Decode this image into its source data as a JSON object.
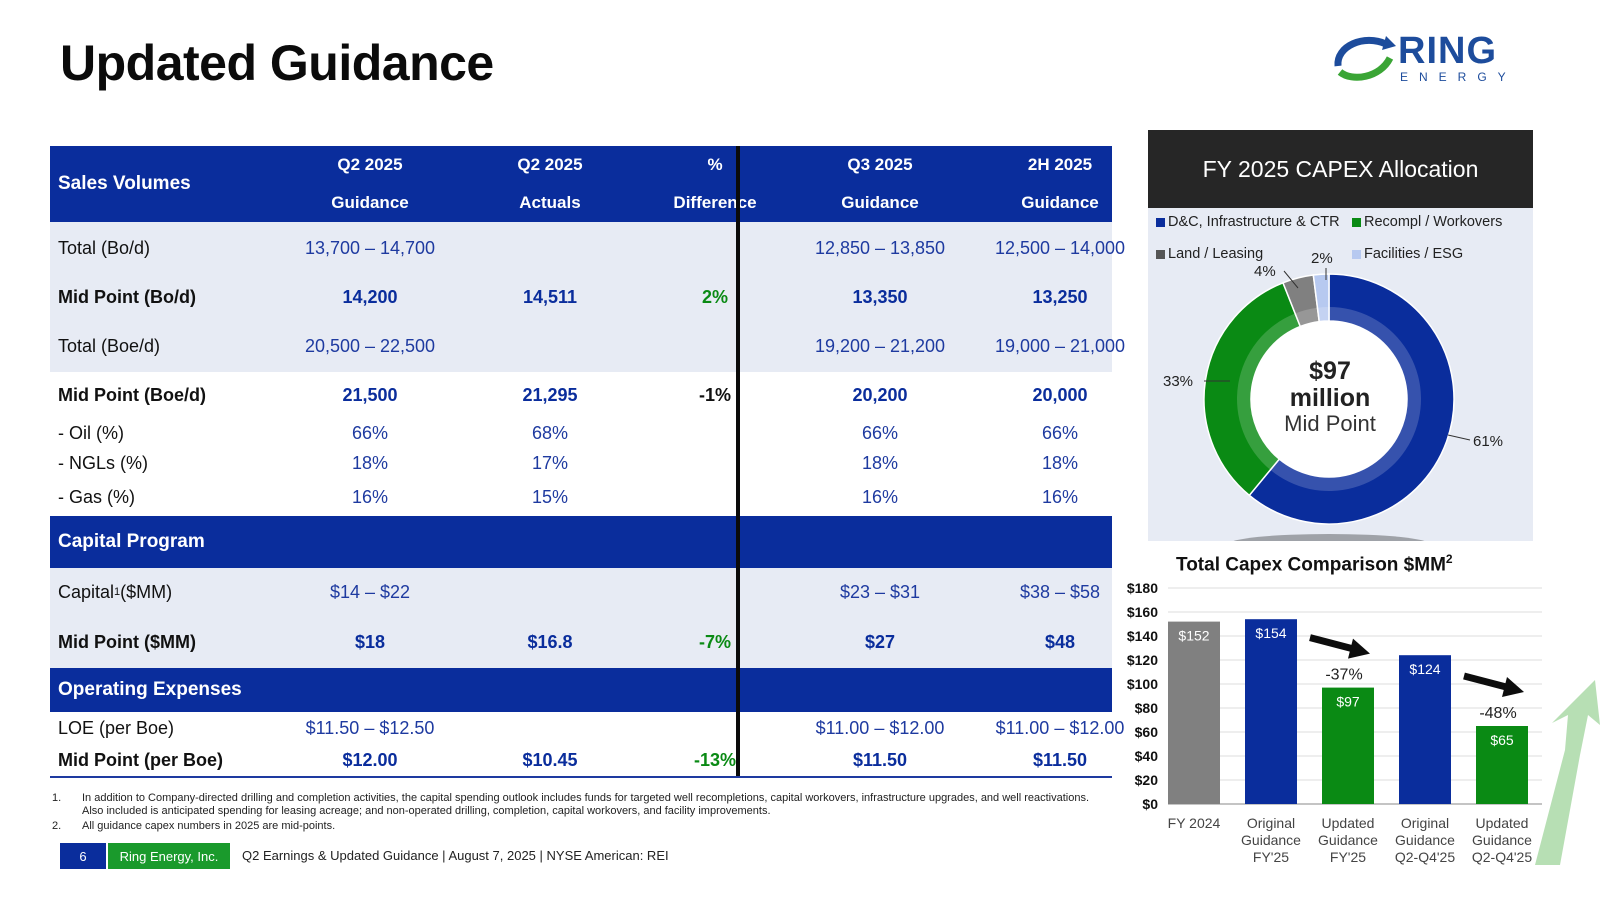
{
  "page": {
    "title": "Updated Guidance",
    "logo": {
      "word": "RING",
      "sub": "ENERGY"
    }
  },
  "table": {
    "header": {
      "label": "Sales Volumes",
      "cols": [
        {
          "l1": "Q2 2025",
          "l2": "Guidance"
        },
        {
          "l1": "Q2 2025",
          "l2": "Actuals"
        },
        {
          "l1": "%",
          "l2": "Difference"
        },
        {
          "l1": "Q3 2025",
          "l2": "Guidance"
        },
        {
          "l1": "2H 2025",
          "l2": "Guidance"
        }
      ]
    },
    "rows": [
      {
        "label": "Total (Bo/d)",
        "vals": [
          "13,700 – 14,700",
          "",
          "",
          "12,850 – 13,850",
          "12,500 – 14,000"
        ]
      },
      {
        "label": "Mid Point (Bo/d)",
        "vals": [
          "14,200",
          "14,511",
          "2%",
          "13,350",
          "13,250"
        ]
      },
      {
        "label": "Total (Boe/d)",
        "vals": [
          "20,500 – 22,500",
          "",
          "",
          "19,200 – 21,200",
          "19,000 – 21,000"
        ]
      },
      {
        "label": "Mid Point (Boe/d)",
        "vals": [
          "21,500",
          "21,295",
          "-1%",
          "20,200",
          "20,000"
        ]
      },
      {
        "label": " - Oil (%)",
        "vals": [
          "66%",
          "68%",
          "",
          "66%",
          "66%"
        ]
      },
      {
        "label": " - NGLs (%)",
        "vals": [
          "18%",
          "17%",
          "",
          "18%",
          "18%"
        ]
      },
      {
        "label": " - Gas (%)",
        "vals": [
          "16%",
          "15%",
          "",
          "16%",
          "16%"
        ]
      },
      {
        "label": "Capital Program",
        "vals": [
          "",
          "",
          "",
          "",
          ""
        ]
      },
      {
        "label": "Capital",
        "sup": "1",
        "label_tail": " ($MM)",
        "vals": [
          "$14 – $22",
          "",
          "",
          "$23 – $31",
          "$38 – $58"
        ]
      },
      {
        "label": "Mid Point ($MM)",
        "vals": [
          "$18",
          "$16.8",
          "-7%",
          "$27",
          "$48"
        ]
      },
      {
        "label": "Operating Expenses",
        "vals": [
          "",
          "",
          "",
          "",
          ""
        ]
      },
      {
        "label": "LOE (per Boe)",
        "vals": [
          "$11.50 – $12.50",
          "",
          "",
          "$11.00 – $12.00",
          "$11.00 – $12.00"
        ]
      },
      {
        "label": "Mid Point (per Boe)",
        "vals": [
          "$12.00",
          "$10.45",
          "-13%",
          "$11.50",
          "$11.50"
        ]
      }
    ]
  },
  "footnotes": [
    {
      "n": "1.",
      "text": "In addition to Company-directed drilling and completion activities, the capital spending outlook includes funds for targeted well recompletions, capital workovers, infrastructure upgrades, and well reactivations. Also included is anticipated spending for leasing acreage; and non-operated drilling, completion, capital workovers, and facility improvements."
    },
    {
      "n": "2.",
      "text": "All guidance capex numbers in 2025 are mid-points."
    }
  ],
  "footer": {
    "page_number": "6",
    "company": "Ring Energy, Inc.",
    "text": "Q2 Earnings & Updated Guidance | August 7, 2025 |  NYSE American: REI"
  },
  "chart_data": [
    {
      "type": "pie",
      "title": "FY 2025 CAPEX Allocation",
      "labels": [
        "D&C, Infrastructure & CTR",
        "Recompl / Workovers",
        "Land / Leasing",
        "Facilities / ESG"
      ],
      "values": [
        61,
        33,
        4,
        2
      ],
      "value_labels": [
        "61%",
        "33%",
        "4%",
        "2%"
      ],
      "colors": [
        "#0a2d9c",
        "#0a8a14",
        "#808080",
        "#b7c9f0"
      ],
      "center": {
        "l1": "$97",
        "l2": "million",
        "l3": "Mid Point"
      },
      "legend": "top"
    },
    {
      "type": "bar",
      "title": "Total Capex Comparison $MM",
      "title_sup": "2",
      "categories": [
        [
          "FY 2024"
        ],
        [
          "Original",
          "Guidance",
          "FY'25"
        ],
        [
          "Updated",
          "Guidance",
          "FY'25"
        ],
        [
          "Original",
          "Guidance",
          "Q2-Q4'25"
        ],
        [
          "Updated",
          "Guidance",
          "Q2-Q4'25"
        ]
      ],
      "values": [
        152,
        154,
        97,
        124,
        65
      ],
      "value_labels": [
        "$152",
        "$154",
        "$97",
        "$124",
        "$65"
      ],
      "colors": [
        "#808080",
        "#0a2d9c",
        "#0a8a14",
        "#0a2d9c",
        "#0a8a14"
      ],
      "yticks": [
        "$0",
        "$20",
        "$40",
        "$60",
        "$80",
        "$100",
        "$120",
        "$140",
        "$160",
        "$180"
      ],
      "ylim": [
        0,
        180
      ],
      "grid": true,
      "annotations": [
        {
          "text": "-37%",
          "bar": 2
        },
        {
          "text": "-48%",
          "bar": 4
        }
      ]
    }
  ]
}
